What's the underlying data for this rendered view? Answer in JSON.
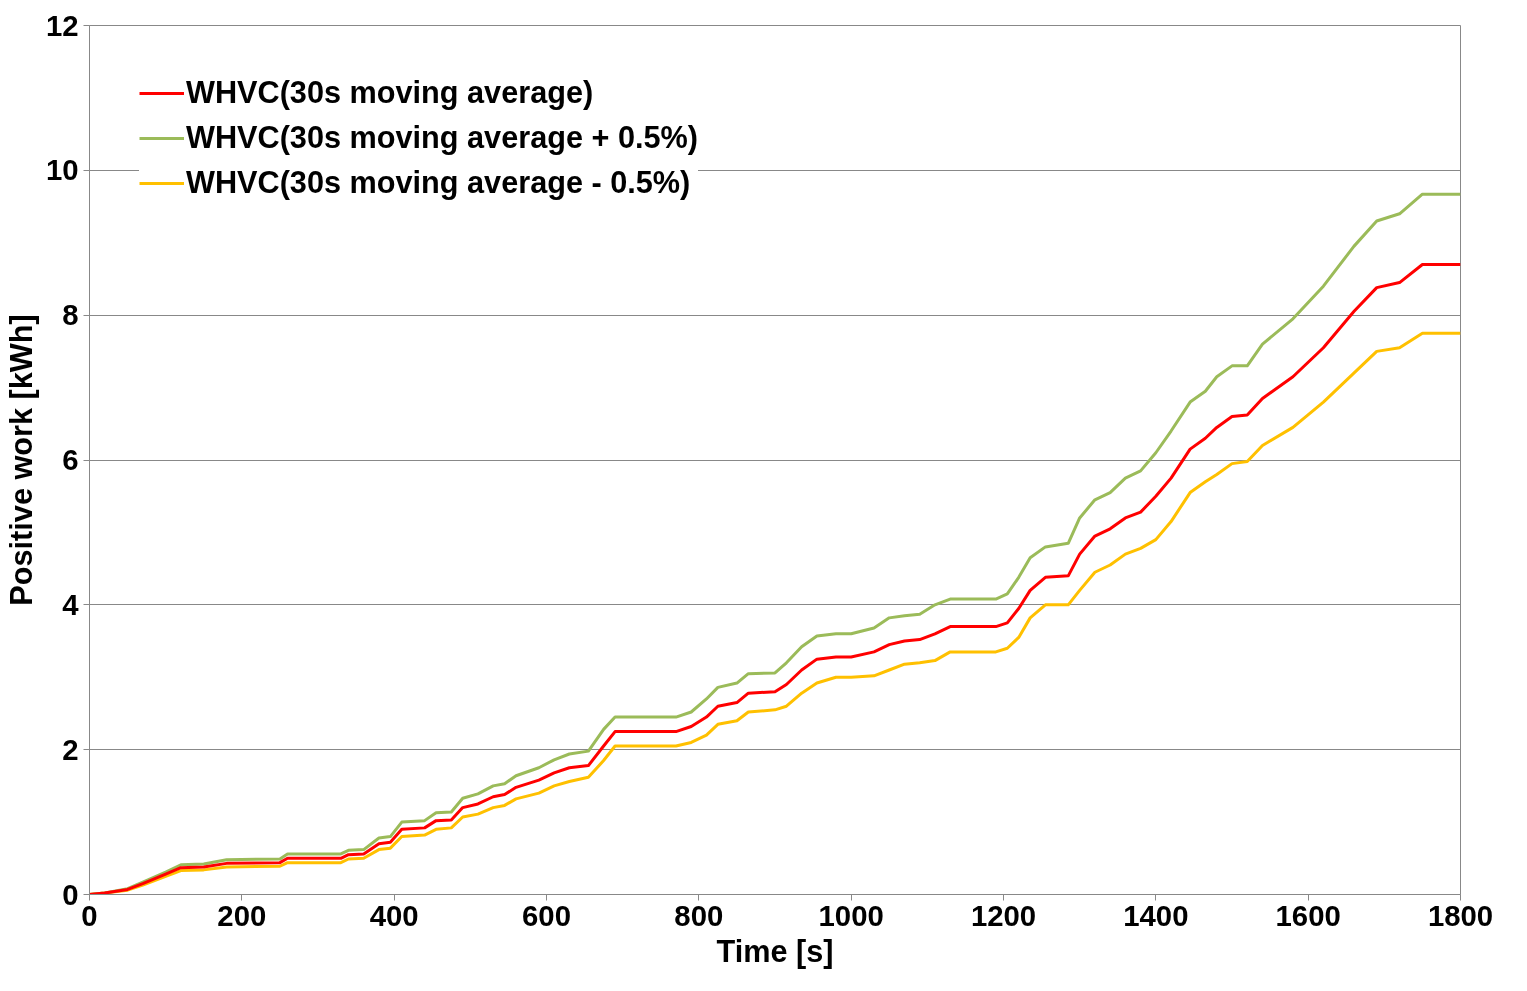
{
  "chart_data": {
    "type": "line",
    "xlabel": "Time [s]",
    "ylabel": "Positive work [kWh]",
    "x": [
      0,
      20,
      50,
      70,
      100,
      120,
      150,
      180,
      250,
      260,
      330,
      340,
      360,
      380,
      395,
      410,
      440,
      455,
      475,
      490,
      510,
      530,
      545,
      560,
      590,
      610,
      630,
      655,
      675,
      690,
      770,
      790,
      810,
      825,
      850,
      865,
      900,
      915,
      935,
      955,
      980,
      1000,
      1030,
      1050,
      1070,
      1090,
      1110,
      1130,
      1190,
      1205,
      1220,
      1235,
      1255,
      1285,
      1300,
      1320,
      1340,
      1360,
      1380,
      1400,
      1420,
      1445,
      1465,
      1480,
      1500,
      1520,
      1540,
      1580,
      1620,
      1660,
      1690,
      1720,
      1750,
      1800
    ],
    "series": [
      {
        "name": "WHVC(30s moving average)",
        "color": "#ff0000",
        "values": [
          0,
          0.02,
          0.07,
          0.15,
          0.28,
          0.37,
          0.38,
          0.43,
          0.44,
          0.5,
          0.5,
          0.55,
          0.56,
          0.7,
          0.72,
          0.9,
          0.92,
          1.02,
          1.03,
          1.2,
          1.25,
          1.35,
          1.38,
          1.48,
          1.58,
          1.68,
          1.75,
          1.78,
          2.05,
          2.25,
          2.25,
          2.32,
          2.45,
          2.6,
          2.65,
          2.78,
          2.8,
          2.9,
          3.1,
          3.25,
          3.28,
          3.28,
          3.35,
          3.45,
          3.5,
          3.52,
          3.6,
          3.7,
          3.7,
          3.75,
          3.95,
          4.2,
          4.38,
          4.4,
          4.7,
          4.95,
          5.05,
          5.2,
          5.28,
          5.5,
          5.75,
          6.15,
          6.3,
          6.45,
          6.6,
          6.62,
          6.85,
          7.15,
          7.55,
          8.05,
          8.38,
          8.45,
          8.7,
          8.7
        ]
      },
      {
        "name": "WHVC(30s moving average + 0.5%)",
        "color": "#9bbb59",
        "values": [
          0,
          0.02,
          0.08,
          0.17,
          0.31,
          0.41,
          0.42,
          0.48,
          0.49,
          0.56,
          0.56,
          0.61,
          0.62,
          0.78,
          0.8,
          1.0,
          1.02,
          1.13,
          1.14,
          1.33,
          1.39,
          1.5,
          1.53,
          1.64,
          1.75,
          1.86,
          1.94,
          1.98,
          2.28,
          2.45,
          2.45,
          2.52,
          2.7,
          2.86,
          2.92,
          3.05,
          3.06,
          3.2,
          3.42,
          3.57,
          3.6,
          3.6,
          3.68,
          3.82,
          3.85,
          3.87,
          4.0,
          4.08,
          4.08,
          4.15,
          4.38,
          4.65,
          4.8,
          4.85,
          5.2,
          5.45,
          5.55,
          5.75,
          5.85,
          6.1,
          6.4,
          6.8,
          6.95,
          7.15,
          7.3,
          7.3,
          7.6,
          7.95,
          8.4,
          8.95,
          9.3,
          9.4,
          9.67,
          9.67
        ]
      },
      {
        "name": "WHVC(30s moving average - 0.5%)",
        "color": "#ffc000",
        "values": [
          0,
          0.02,
          0.06,
          0.13,
          0.25,
          0.33,
          0.34,
          0.38,
          0.39,
          0.44,
          0.44,
          0.49,
          0.5,
          0.62,
          0.64,
          0.8,
          0.82,
          0.9,
          0.92,
          1.07,
          1.11,
          1.2,
          1.23,
          1.32,
          1.4,
          1.5,
          1.56,
          1.62,
          1.85,
          2.05,
          2.05,
          2.1,
          2.2,
          2.35,
          2.4,
          2.52,
          2.55,
          2.6,
          2.78,
          2.92,
          3.0,
          3.0,
          3.02,
          3.1,
          3.18,
          3.2,
          3.23,
          3.35,
          3.35,
          3.4,
          3.55,
          3.82,
          4.0,
          4.0,
          4.2,
          4.45,
          4.55,
          4.7,
          4.78,
          4.9,
          5.15,
          5.55,
          5.7,
          5.8,
          5.95,
          5.98,
          6.2,
          6.45,
          6.8,
          7.2,
          7.5,
          7.55,
          7.75,
          7.75
        ]
      }
    ],
    "xlim": [
      0,
      1800
    ],
    "xticks": [
      0,
      200,
      400,
      600,
      800,
      1000,
      1200,
      1400,
      1600,
      1800
    ],
    "ylim": [
      0,
      12
    ],
    "yticks": [
      0,
      2,
      4,
      6,
      8,
      10,
      12
    ],
    "grid": "y",
    "legend": "top left",
    "marker": "none",
    "line_style": "solid"
  }
}
